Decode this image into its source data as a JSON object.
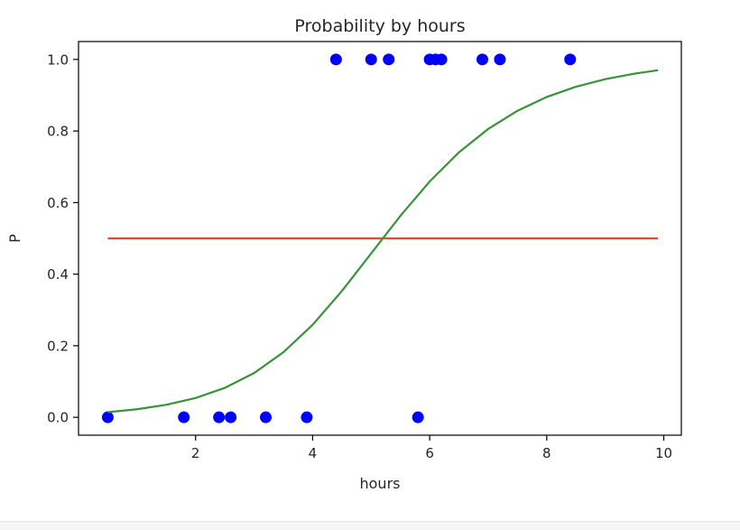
{
  "chart_data": {
    "type": "scatter",
    "title": "Probability by hours",
    "xlabel": "hours",
    "ylabel": "P",
    "xlim": [
      0.0,
      10.3
    ],
    "ylim": [
      -0.05,
      1.05
    ],
    "xticks": [
      2,
      4,
      6,
      8,
      10
    ],
    "yticks": [
      0.0,
      0.2,
      0.4,
      0.6,
      0.8,
      1.0
    ],
    "xtick_labels": [
      "2",
      "4",
      "6",
      "8",
      "10"
    ],
    "ytick_labels": [
      "0.0",
      "0.2",
      "0.4",
      "0.6",
      "0.8",
      "1.0"
    ],
    "grid": false,
    "series": [
      {
        "kind": "scatter",
        "color": "#0000ff",
        "x": [
          0.5,
          1.8,
          2.4,
          2.6,
          3.2,
          3.9,
          5.8,
          4.4,
          5.0,
          5.3,
          6.0,
          6.1,
          6.2,
          6.9,
          7.2,
          8.4
        ],
        "y": [
          0,
          0,
          0,
          0,
          0,
          0,
          0,
          1,
          1,
          1,
          1,
          1,
          1,
          1,
          1,
          1
        ]
      },
      {
        "kind": "line",
        "color": "#e24a33",
        "x": [
          0.5,
          9.9
        ],
        "y": [
          0.5,
          0.5
        ]
      },
      {
        "kind": "line",
        "color": "#3a923a",
        "x": [
          0.5,
          1.0,
          1.5,
          2.0,
          2.5,
          3.0,
          3.5,
          4.0,
          4.5,
          5.0,
          5.5,
          6.0,
          6.5,
          7.0,
          7.5,
          8.0,
          8.5,
          9.0,
          9.5,
          9.9
        ],
        "y": [
          0.0144,
          0.0225,
          0.0349,
          0.0539,
          0.0823,
          0.1237,
          0.1816,
          0.2585,
          0.3528,
          0.4578,
          0.563,
          0.659,
          0.7403,
          0.8057,
          0.8565,
          0.8951,
          0.9238,
          0.9449,
          0.9603,
          0.9698
        ]
      }
    ]
  }
}
